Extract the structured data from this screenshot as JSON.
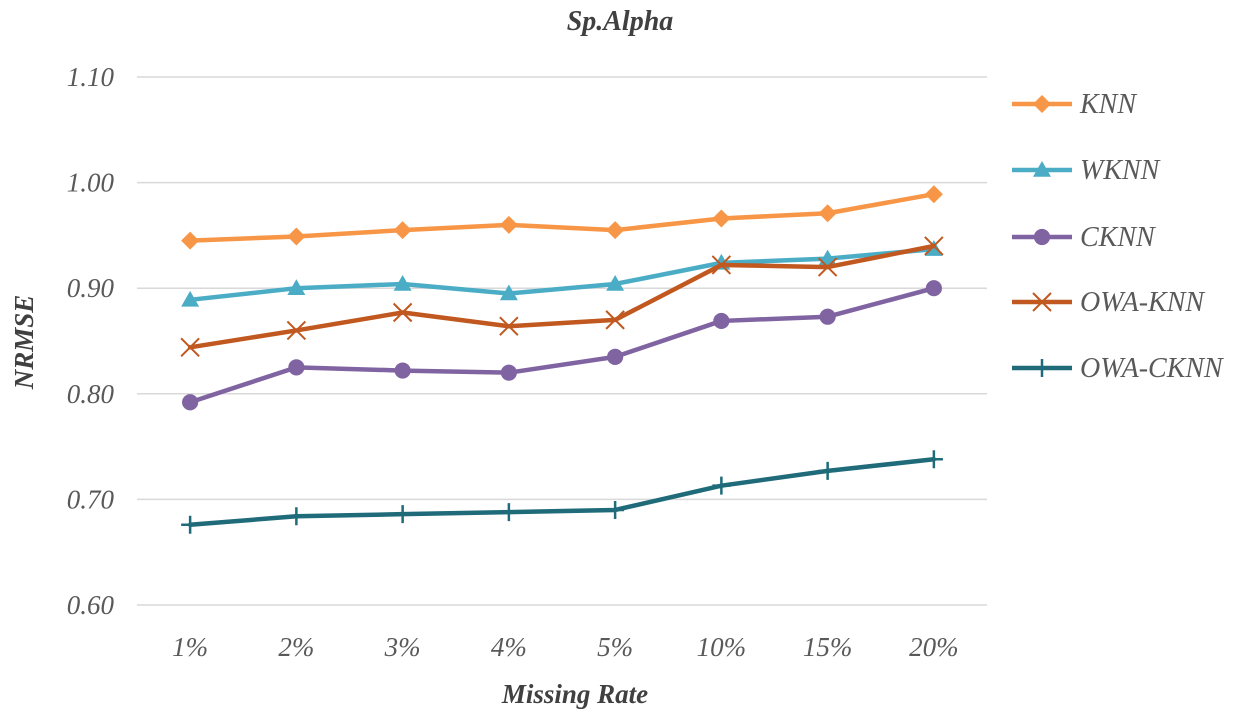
{
  "chart_data": {
    "type": "line",
    "title": "Sp.Alpha",
    "xlabel": "Missing Rate",
    "ylabel": "NRMSE",
    "categories": [
      "1%",
      "2%",
      "3%",
      "4%",
      "5%",
      "10%",
      "15%",
      "20%"
    ],
    "ylim": [
      0.6,
      1.1
    ],
    "yticks": [
      "0.60",
      "0.70",
      "0.80",
      "0.90",
      "1.00",
      "1.10"
    ],
    "grid": true,
    "legend_position": "right",
    "series": [
      {
        "name": "KNN",
        "color": "#F79646",
        "marker": "diamond",
        "values": [
          0.945,
          0.949,
          0.955,
          0.96,
          0.955,
          0.966,
          0.971,
          0.989
        ]
      },
      {
        "name": "WKNN",
        "color": "#4BACC6",
        "marker": "triangle",
        "values": [
          0.889,
          0.9,
          0.904,
          0.895,
          0.904,
          0.924,
          0.928,
          0.937
        ]
      },
      {
        "name": "CKNN",
        "color": "#8064A2",
        "marker": "circle",
        "values": [
          0.792,
          0.825,
          0.822,
          0.82,
          0.835,
          0.869,
          0.873,
          0.9
        ]
      },
      {
        "name": "OWA-KNN",
        "color": "#C0581F",
        "marker": "x",
        "values": [
          0.844,
          0.86,
          0.877,
          0.864,
          0.87,
          0.922,
          0.92,
          0.94
        ]
      },
      {
        "name": "OWA-CKNN",
        "color": "#1F6B7A",
        "marker": "plus",
        "values": [
          0.676,
          0.684,
          0.686,
          0.688,
          0.69,
          0.713,
          0.727,
          0.738
        ]
      }
    ]
  }
}
